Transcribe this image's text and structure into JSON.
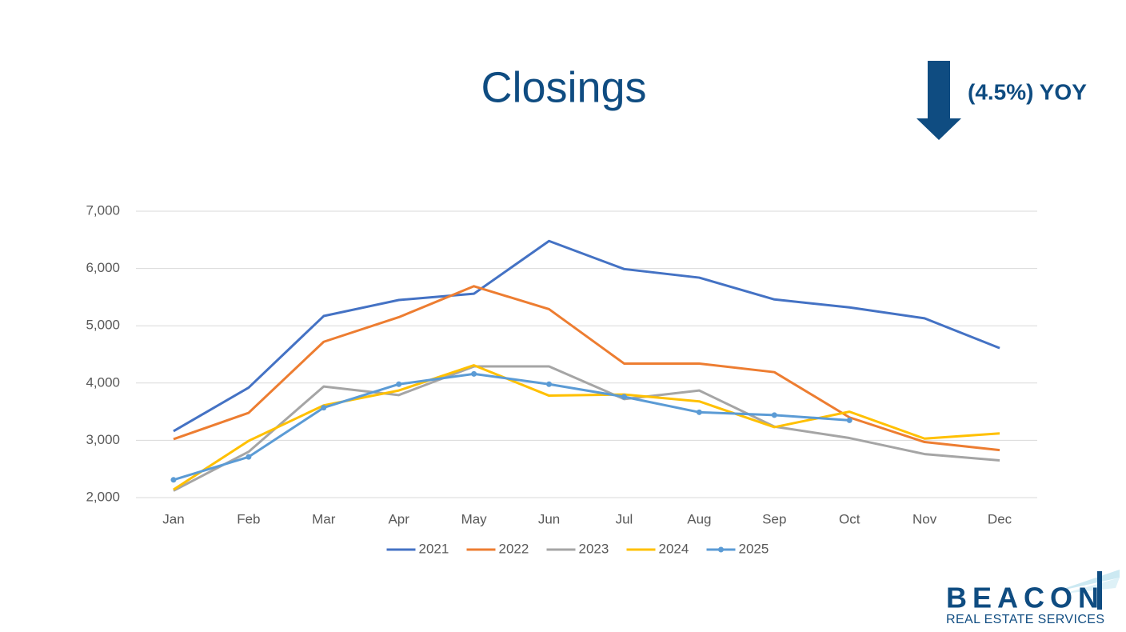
{
  "chart_data": {
    "type": "line",
    "title": "Closings",
    "annotation": "(4.5%) YOY",
    "categories": [
      "Jan",
      "Feb",
      "Mar",
      "Apr",
      "May",
      "Jun",
      "Jul",
      "Aug",
      "Sep",
      "Oct",
      "Nov",
      "Dec"
    ],
    "series": [
      {
        "name": "2021",
        "color": "#4472c4",
        "values": [
          3160,
          3920,
          5170,
          5450,
          5560,
          6480,
          5990,
          5840,
          5460,
          5320,
          5130,
          4610
        ]
      },
      {
        "name": "2022",
        "color": "#ed7d31",
        "values": [
          3020,
          3480,
          4720,
          5150,
          5690,
          5290,
          4340,
          4340,
          4190,
          3400,
          2970,
          2830
        ]
      },
      {
        "name": "2023",
        "color": "#a5a5a5",
        "values": [
          2120,
          2800,
          3940,
          3790,
          4290,
          4290,
          3720,
          3870,
          3240,
          3040,
          2760,
          2650
        ]
      },
      {
        "name": "2024",
        "color": "#ffc000",
        "values": [
          2140,
          2990,
          3610,
          3870,
          4310,
          3780,
          3800,
          3680,
          3230,
          3500,
          3030,
          3120
        ]
      },
      {
        "name": "2025",
        "color": "#5b9bd5",
        "marker": true,
        "values": [
          2310,
          2710,
          3570,
          3980,
          4160,
          3980,
          3760,
          3490,
          3440,
          3350,
          null,
          null
        ]
      }
    ],
    "ylim": [
      2000,
      7000
    ],
    "yticks": [
      {
        "value": 2000,
        "label": "2,000"
      },
      {
        "value": 3000,
        "label": "3,000"
      },
      {
        "value": 4000,
        "label": "4,000"
      },
      {
        "value": 5000,
        "label": "5,000"
      },
      {
        "value": 6000,
        "label": "6,000"
      },
      {
        "value": 7000,
        "label": "7,000"
      }
    ],
    "grid": true,
    "legend": "bottom"
  },
  "logo": {
    "name": "BEACON",
    "tagline": "REAL ESTATE SERVICES"
  }
}
